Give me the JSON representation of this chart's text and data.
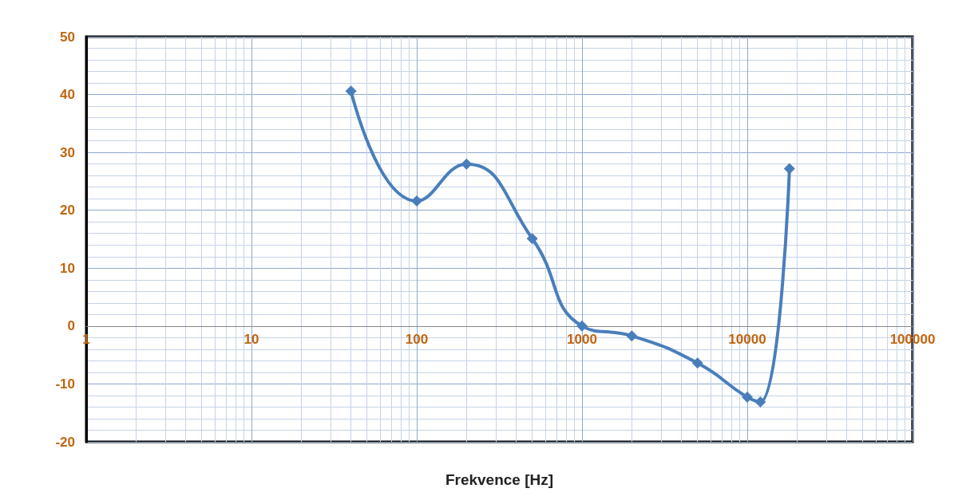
{
  "chart_data": {
    "type": "line",
    "xlabel": "Frekvence [Hz]",
    "x": [
      40,
      100,
      200,
      500,
      1000,
      2000,
      5000,
      10000,
      12000,
      18000
    ],
    "series": [
      {
        "color": "#4a7ebb",
        "values": [
          40.6,
          21.6,
          28.0,
          15.1,
          0,
          -1.7,
          -6.4,
          -12.3,
          -13.1,
          27.2
        ]
      }
    ],
    "xlim": [
      1,
      100000
    ],
    "xticks": [
      1,
      10,
      100,
      1000,
      10000,
      100000
    ],
    "ylim": [
      -20,
      50
    ],
    "yticks": [
      -20,
      -10,
      0,
      10,
      20,
      30,
      40,
      50
    ],
    "log": "x",
    "grid": true,
    "marker": "diamond",
    "line_style": "solid"
  }
}
